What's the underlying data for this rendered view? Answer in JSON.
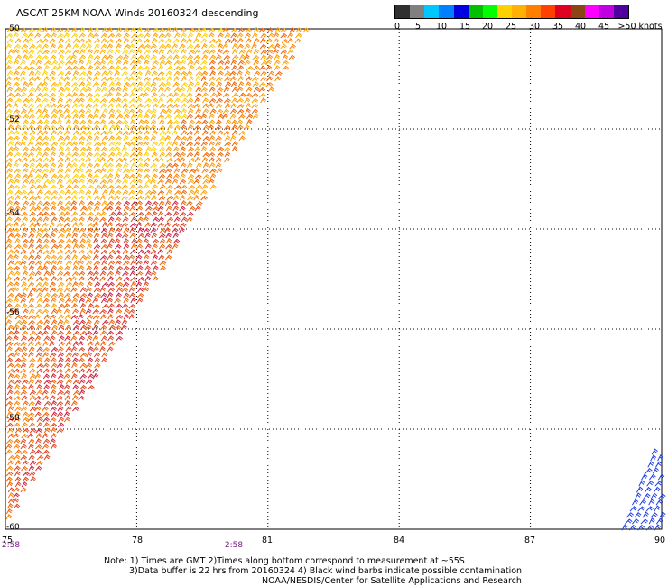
{
  "title": "ASCAT 25KM NOAA Winds 20160324 descending",
  "legend": {
    "colors": [
      "#303030",
      "#808080",
      "#00c8ff",
      "#0080ff",
      "#0000e0",
      "#00c000",
      "#00ff00",
      "#ffd000",
      "#ffb000",
      "#ff8000",
      "#ff4000",
      "#e00020",
      "#8b4513",
      "#ff00ff",
      "#c000e0",
      "#5000a0"
    ],
    "labels": [
      "0",
      "5",
      "10",
      "15",
      "20",
      "25",
      "30",
      "35",
      "40",
      "45",
      ">50 knots"
    ]
  },
  "axes": {
    "lat_labels": [
      "-50",
      "-52",
      "-54",
      "-56",
      "-58",
      "-60"
    ],
    "lon_labels": [
      "75",
      "78",
      "81",
      "84",
      "87",
      "90"
    ]
  },
  "times": [
    "2:58",
    "2:58"
  ],
  "notes": [
    "Note: 1) Times are GMT 2)Times along bottom correspond to measurement at ~55S",
    "3)Data buffer is 22 hrs from 20160324 4) Black wind barbs indicate possible contamination",
    "NOAA/NESDIS/Center for Satellite Applications and Research"
  ],
  "map_data": {
    "lon_range": [
      75,
      90
    ],
    "lat_range": [
      -60,
      -50
    ],
    "wind_swaths": [
      {
        "name": "western swath",
        "lat_top": -50,
        "lat_bottom": -60,
        "lon_east_top": 82,
        "lon_east_bottom": 75,
        "speed_knots": [
          20,
          35
        ]
      },
      {
        "name": "eastern swath",
        "lat_top": -58.4,
        "lat_bottom": -60,
        "lon_west": 88.8,
        "lon_east": 90,
        "speed_knots": [
          10,
          15
        ]
      }
    ]
  }
}
